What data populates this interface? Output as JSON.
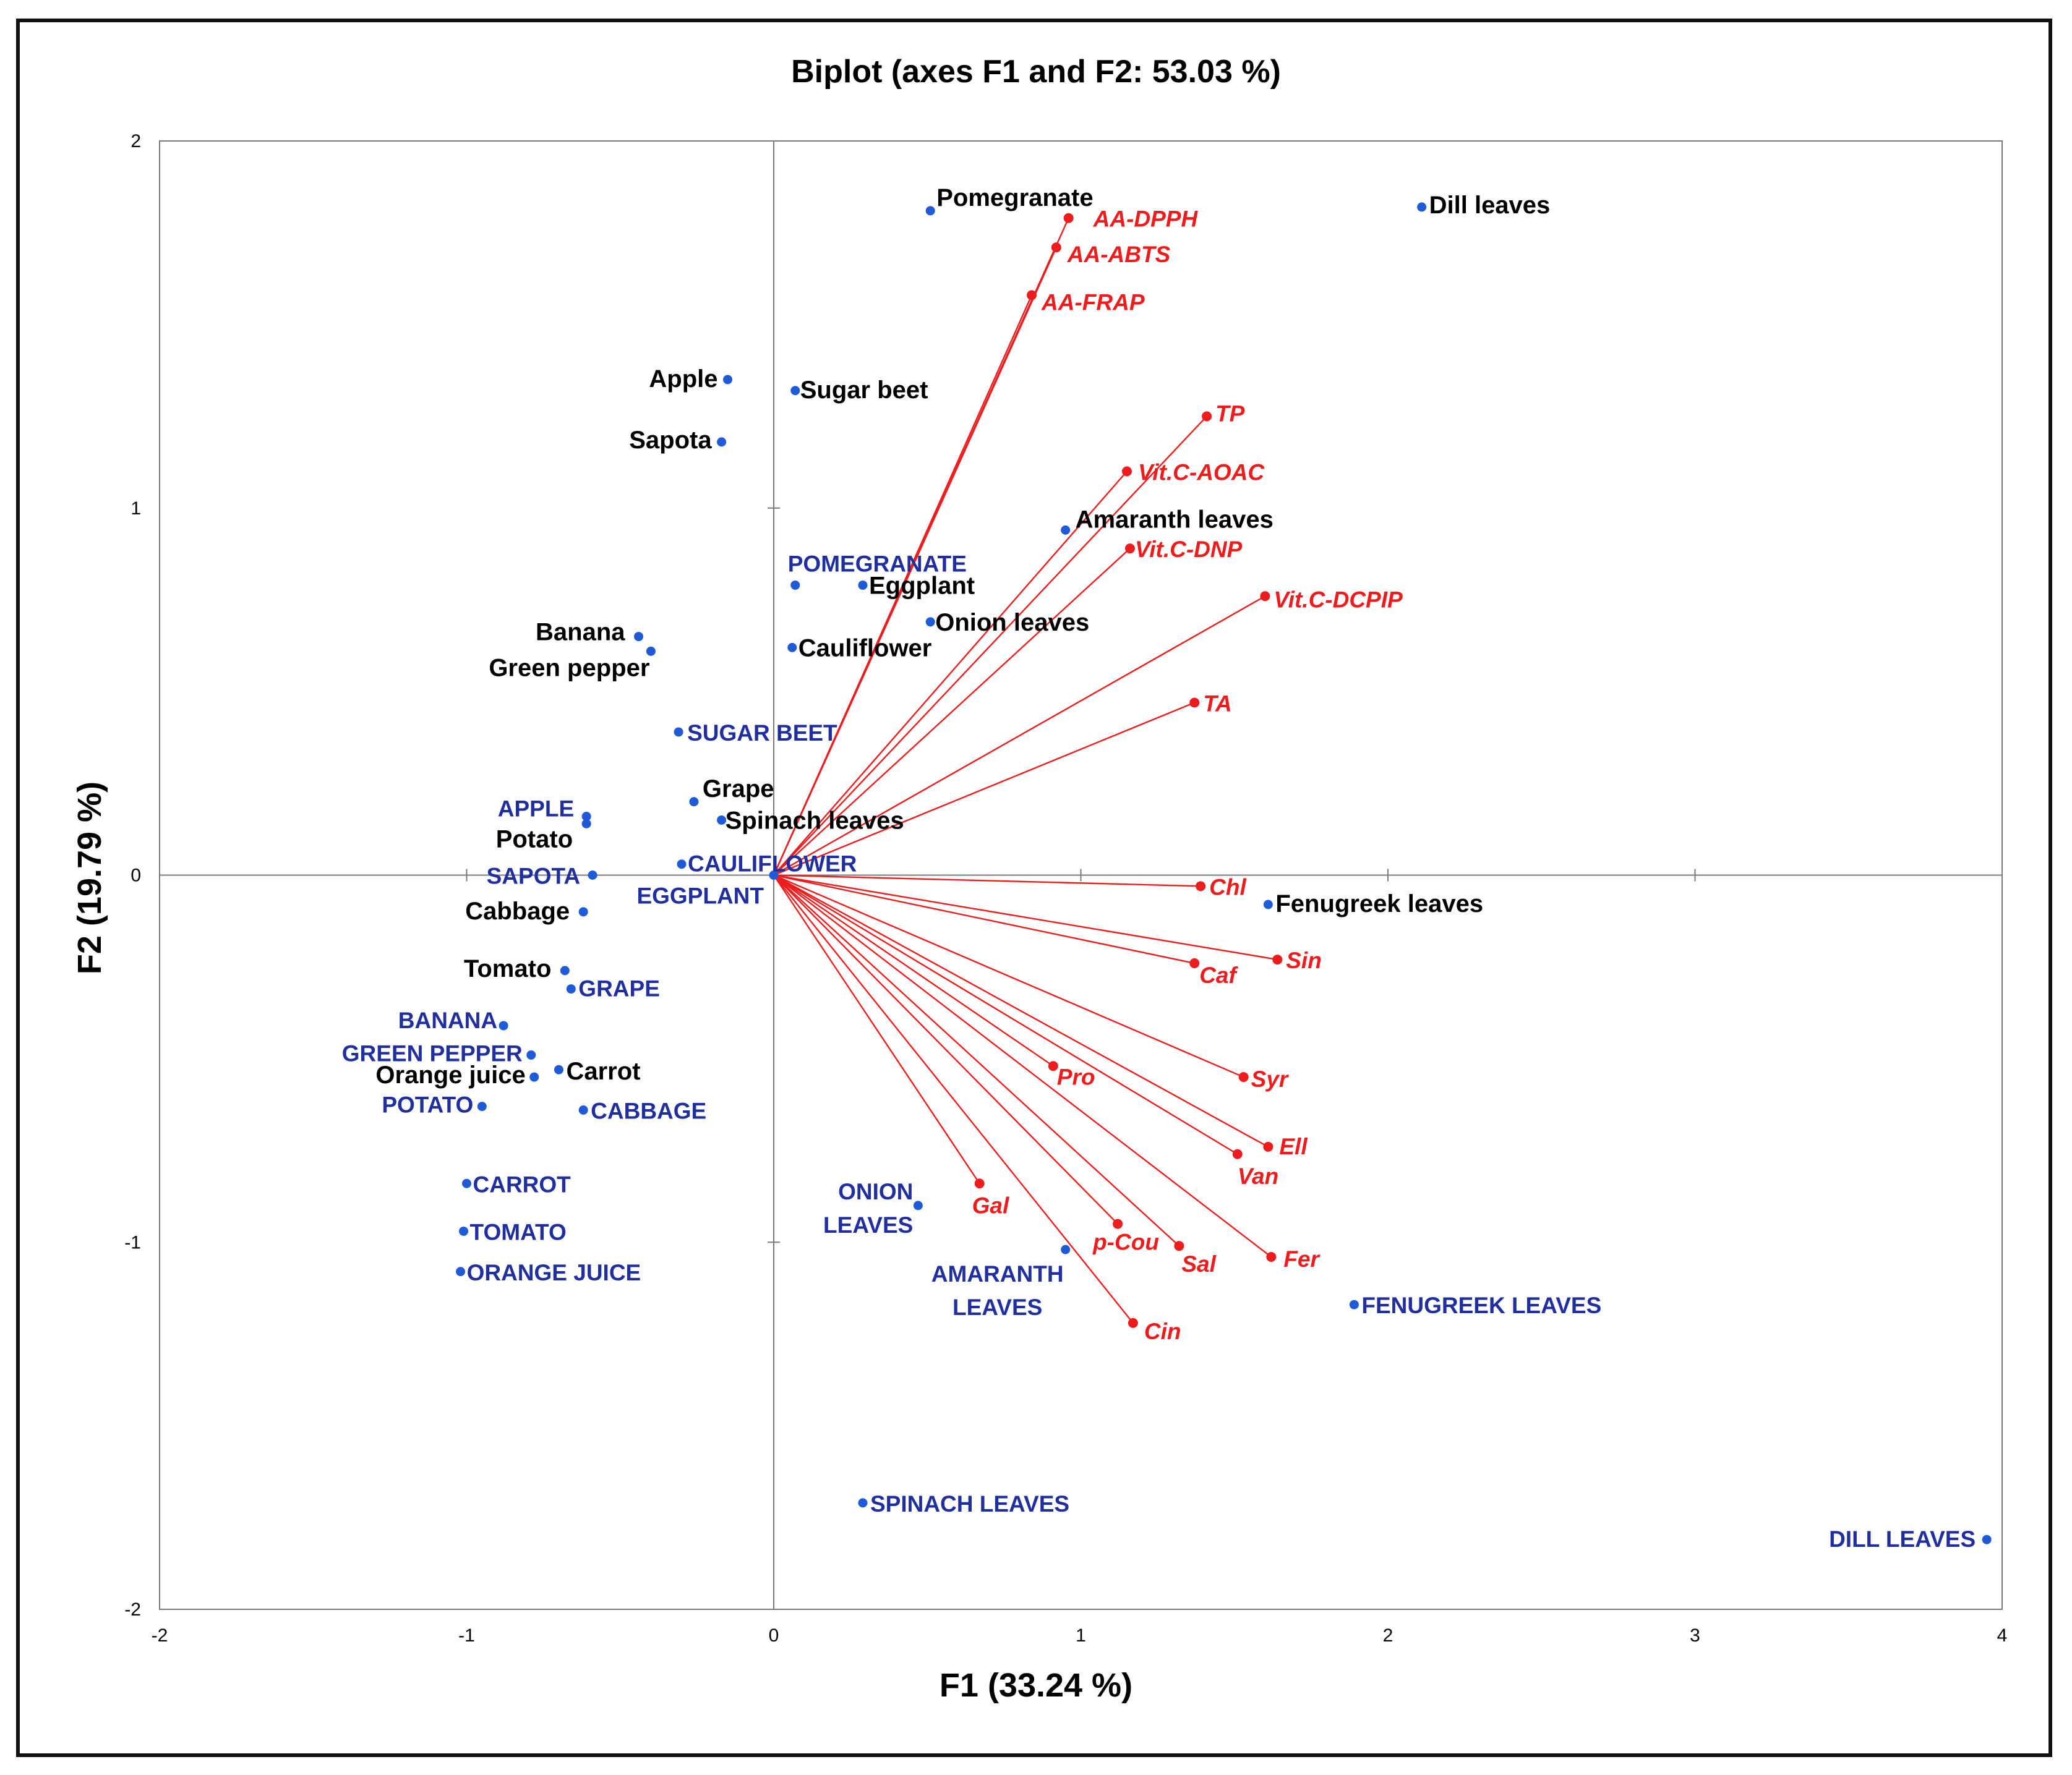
{
  "chart_data": {
    "type": "scatter",
    "title": "Biplot (axes F1 and F2: 53.03 %)",
    "xlabel": "F1 (33.24 %)",
    "ylabel": "F2 (19.79 %)",
    "xlim": [
      -2,
      4
    ],
    "ylim": [
      -2,
      2
    ],
    "xticks": [
      -2,
      -1,
      0,
      1,
      2,
      3,
      4
    ],
    "yticks": [
      -2,
      -1,
      0,
      1,
      2
    ],
    "grid": false,
    "colors": {
      "observations": "#1f5bd6",
      "observation_labels": "#000000",
      "supplementary_labels": "#1f2f9f",
      "variables": "#ee1c1c"
    },
    "observations": [
      {
        "label": "Pomegranate",
        "x": 0.51,
        "y": 1.81
      },
      {
        "label": "Dill leaves",
        "x": 2.11,
        "y": 1.82
      },
      {
        "label": "Apple",
        "x": -0.15,
        "y": 1.35
      },
      {
        "label": "Sugar beet",
        "x": 0.07,
        "y": 1.32
      },
      {
        "label": "Sapota",
        "x": -0.17,
        "y": 1.18
      },
      {
        "label": "Amaranth leaves",
        "x": 0.95,
        "y": 0.94
      },
      {
        "label": "Eggplant",
        "x": 0.29,
        "y": 0.79
      },
      {
        "label": "Onion leaves",
        "x": 0.51,
        "y": 0.69
      },
      {
        "label": "Cauliflower",
        "x": 0.06,
        "y": 0.62
      },
      {
        "label": "Banana",
        "x": -0.44,
        "y": 0.65
      },
      {
        "label": "Green pepper",
        "x": -0.4,
        "y": 0.61
      },
      {
        "label": "Grape",
        "x": -0.26,
        "y": 0.2
      },
      {
        "label": "Spinach leaves",
        "x": -0.17,
        "y": 0.15
      },
      {
        "label": "Potato",
        "x": -0.61,
        "y": 0.14
      },
      {
        "label": "Cabbage",
        "x": -0.62,
        "y": -0.1
      },
      {
        "label": "Fenugreek leaves",
        "x": 1.61,
        "y": -0.08
      },
      {
        "label": "Tomato",
        "x": -0.68,
        "y": -0.26
      },
      {
        "label": "Orange juice",
        "x": -0.78,
        "y": -0.55
      },
      {
        "label": "Carrot",
        "x": -0.7,
        "y": -0.53
      }
    ],
    "supplementary": [
      {
        "label": "POMEGRANATE",
        "x": 0.07,
        "y": 0.79
      },
      {
        "label": "SUGAR BEET",
        "x": -0.31,
        "y": 0.39
      },
      {
        "label": "APPLE",
        "x": -0.61,
        "y": 0.16
      },
      {
        "label": "SAPOTA",
        "x": -0.59,
        "y": 0.0
      },
      {
        "label": "CAULIFLOWER",
        "x": -0.3,
        "y": 0.03
      },
      {
        "label": "EGGPLANT",
        "x": 0.0,
        "y": 0.0
      },
      {
        "label": "GRAPE",
        "x": -0.66,
        "y": -0.31
      },
      {
        "label": "BANANA",
        "x": -0.88,
        "y": -0.41
      },
      {
        "label": "GREEN PEPPER",
        "x": -0.79,
        "y": -0.49
      },
      {
        "label": "POTATO",
        "x": -0.95,
        "y": -0.63
      },
      {
        "label": "CABBAGE",
        "x": -0.62,
        "y": -0.64
      },
      {
        "label": "CARROT",
        "x": -1.0,
        "y": -0.84
      },
      {
        "label": "TOMATO",
        "x": -1.01,
        "y": -0.97
      },
      {
        "label": "ORANGE JUICE",
        "x": -1.02,
        "y": -1.08
      },
      {
        "label": "ONION LEAVES",
        "x": 0.47,
        "y": -0.9
      },
      {
        "label": "AMARANTH LEAVES",
        "x": 0.95,
        "y": -1.02
      },
      {
        "label": "FENUGREEK LEAVES",
        "x": 1.89,
        "y": -1.17
      },
      {
        "label": "SPINACH LEAVES",
        "x": 0.29,
        "y": -1.71
      },
      {
        "label": "DILL LEAVES",
        "x": 3.95,
        "y": -1.81
      }
    ],
    "variables": [
      {
        "label": "AA-DPPH",
        "x": 0.96,
        "y": 1.79
      },
      {
        "label": "AA-ABTS",
        "x": 0.92,
        "y": 1.71
      },
      {
        "label": "AA-FRAP",
        "x": 0.84,
        "y": 1.58
      },
      {
        "label": "TP",
        "x": 1.41,
        "y": 1.25
      },
      {
        "label": "Vit.C-AOAC",
        "x": 1.15,
        "y": 1.1
      },
      {
        "label": "Vit.C-DNP",
        "x": 1.16,
        "y": 0.89
      },
      {
        "label": "Vit.C-DCPIP",
        "x": 1.6,
        "y": 0.76
      },
      {
        "label": "TA",
        "x": 1.37,
        "y": 0.47
      },
      {
        "label": "Chl",
        "x": 1.39,
        "y": -0.03
      },
      {
        "label": "Sin",
        "x": 1.64,
        "y": -0.23
      },
      {
        "label": "Caf",
        "x": 1.37,
        "y": -0.24
      },
      {
        "label": "Pro",
        "x": 0.91,
        "y": -0.52
      },
      {
        "label": "Syr",
        "x": 1.53,
        "y": -0.55
      },
      {
        "label": "Ell",
        "x": 1.61,
        "y": -0.74
      },
      {
        "label": "Van",
        "x": 1.51,
        "y": -0.76
      },
      {
        "label": "Gal",
        "x": 0.67,
        "y": -0.84
      },
      {
        "label": "p-Cou",
        "x": 1.12,
        "y": -0.95
      },
      {
        "label": "Sal",
        "x": 1.32,
        "y": -1.01
      },
      {
        "label": "Fer",
        "x": 1.62,
        "y": -1.04
      },
      {
        "label": "Cin",
        "x": 1.17,
        "y": -1.22
      }
    ]
  }
}
